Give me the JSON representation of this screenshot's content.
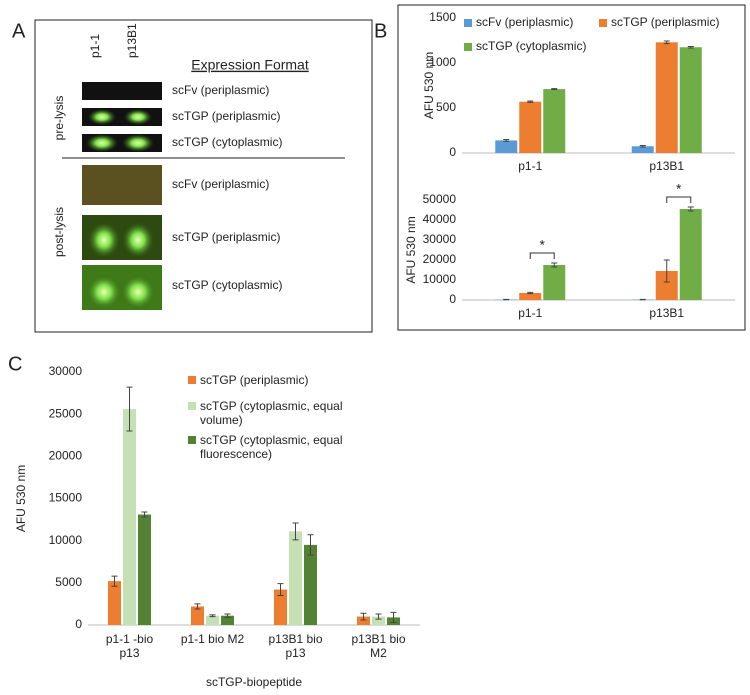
{
  "panel_labels": [
    "A",
    "B",
    "C"
  ],
  "panel_a": {
    "columns": [
      "p1-1",
      "p13B1"
    ],
    "header": "Expression Format",
    "groups": [
      {
        "label": "pre-lysis",
        "rows": [
          "scFv  (periplasmic)",
          "scTGP (periplasmic)",
          "scTGP (cytoplasmic)"
        ]
      },
      {
        "label": "post-lysis",
        "rows": [
          "scFv (periplasmic)",
          "scTGP (periplasmic)",
          "scTGP (cytoplasmic)"
        ]
      }
    ]
  },
  "chart_data": [
    {
      "type": "bar",
      "y_label": "AFU 530 nm",
      "categories": [
        "p1-1",
        "p13B1"
      ],
      "ylim": [
        0,
        1500
      ],
      "yticks": [
        0,
        500,
        1000,
        1500
      ],
      "grid": false,
      "legend": "top",
      "series": [
        {
          "name": "scFv (periplasmic)",
          "color": "#5b9bd5",
          "values": [
            140,
            75
          ],
          "errors": [
            10,
            8
          ]
        },
        {
          "name": "scTGP (periplasmic)",
          "color": "#ed7d31",
          "values": [
            570,
            1230
          ],
          "errors": [
            8,
            15
          ]
        },
        {
          "name": "scTGP (cytoplasmic)",
          "color": "#70ad47",
          "values": [
            710,
            1175
          ],
          "errors": [
            5,
            8
          ]
        }
      ]
    },
    {
      "type": "bar",
      "y_label": "AFU 530 nm",
      "categories": [
        "p1-1",
        "p13B1"
      ],
      "ylim": [
        0,
        50000
      ],
      "yticks": [
        0,
        10000,
        20000,
        30000,
        40000,
        50000
      ],
      "grid": false,
      "annotations": [
        "*",
        "*"
      ],
      "series": [
        {
          "color": "#5b9bd5",
          "values": [
            200,
            200
          ],
          "errors": [
            100,
            100
          ]
        },
        {
          "color": "#ed7d31",
          "values": [
            3500,
            14500
          ],
          "errors": [
            300,
            5500
          ]
        },
        {
          "color": "#70ad47",
          "values": [
            17500,
            45500
          ],
          "errors": [
            1000,
            1000
          ]
        }
      ]
    },
    {
      "type": "bar",
      "y_label": "AFU 530 nm",
      "x_label": "scTGP-biopeptide",
      "categories": [
        "p1-1 -bio p13",
        "p1-1 bio M2",
        "p13B1 bio p13",
        "p13B1 bio M2"
      ],
      "ylim": [
        0,
        30000
      ],
      "yticks": [
        0,
        5000,
        10000,
        15000,
        20000,
        25000,
        30000
      ],
      "grid": false,
      "legend": "upper right",
      "series": [
        {
          "name": "scTGP (periplasmic)",
          "color": "#ed7d31",
          "values": [
            5200,
            2200,
            4200,
            1000
          ],
          "errors": [
            600,
            300,
            700,
            400
          ]
        },
        {
          "name": "scTGP (cytoplasmic, equal volume)",
          "color": "#c5e0b4",
          "values": [
            25600,
            1100,
            11100,
            1000
          ],
          "errors": [
            2600,
            100,
            1000,
            300
          ]
        },
        {
          "name": "scTGP (cytoplasmic, equal fluorescence)",
          "color": "#548235",
          "values": [
            13100,
            1100,
            9500,
            900
          ],
          "errors": [
            300,
            200,
            1200,
            600
          ]
        }
      ]
    }
  ]
}
